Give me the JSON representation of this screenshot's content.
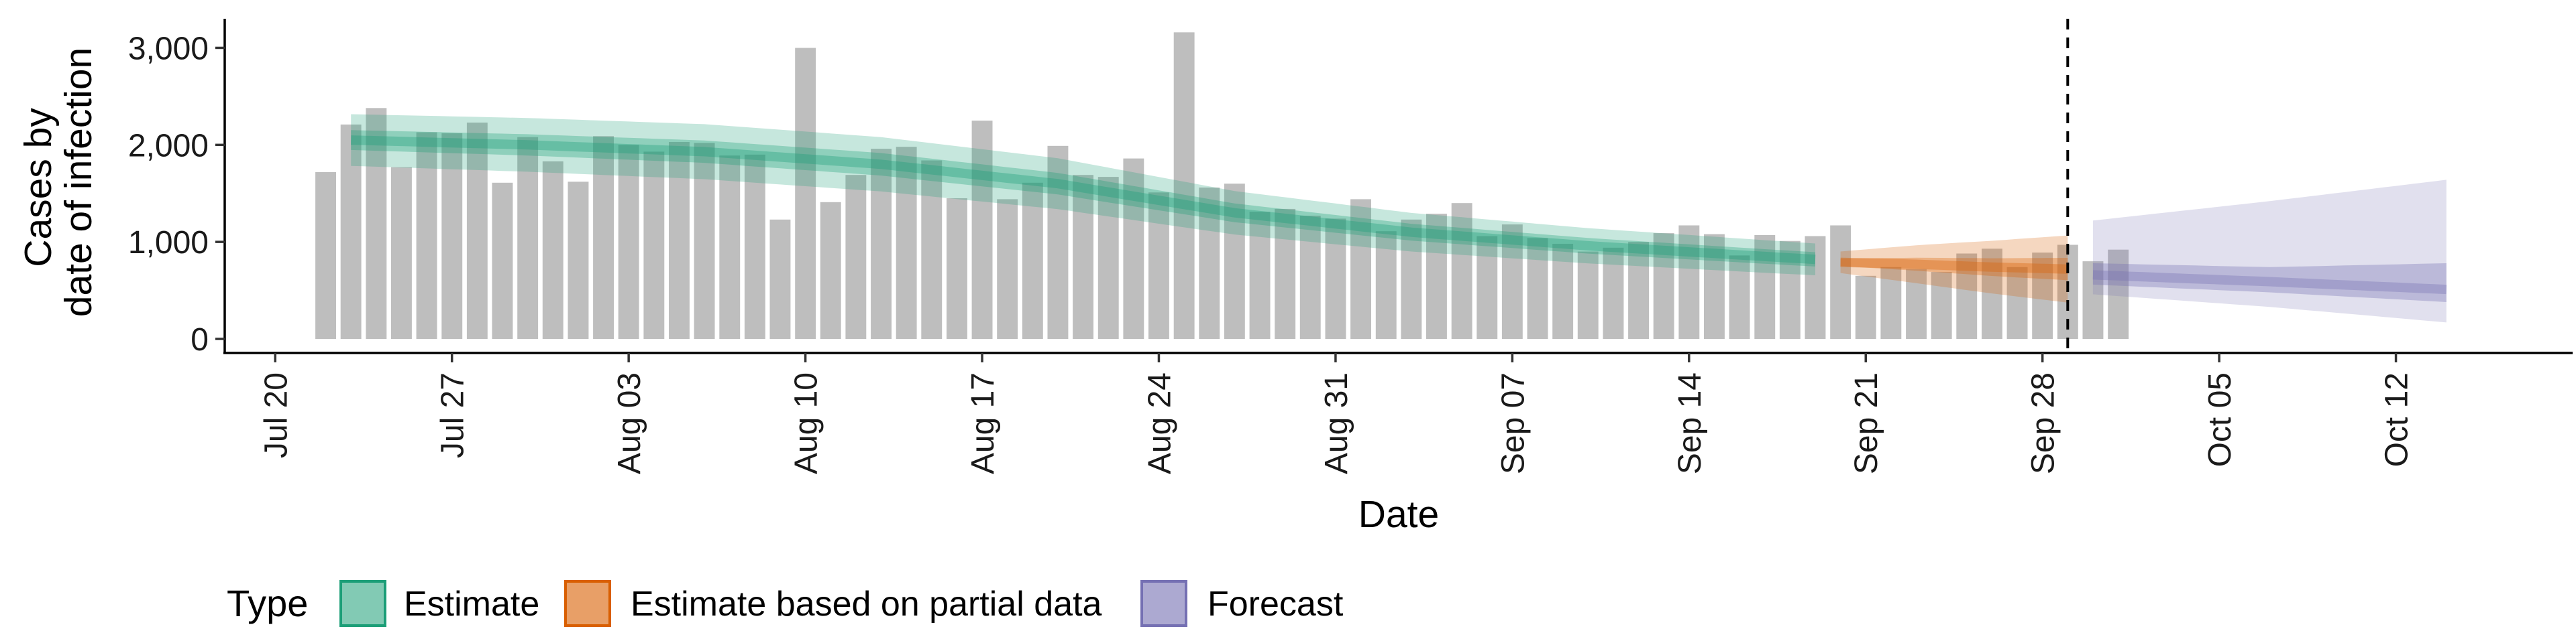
{
  "chart_data": {
    "type": "bar",
    "xlabel": "Date",
    "ylabel_lines": [
      "Cases by",
      "date of infection"
    ],
    "ylim": [
      0,
      3300
    ],
    "y_ticks": [
      0,
      1000,
      2000,
      3000
    ],
    "y_tick_labels": [
      "0",
      "1,000",
      "2,000",
      "3,000"
    ],
    "x_ticks": [
      "2020-07-20",
      "2020-07-27",
      "2020-08-03",
      "2020-08-10",
      "2020-08-17",
      "2020-08-24",
      "2020-08-31",
      "2020-09-07",
      "2020-09-14",
      "2020-09-21",
      "2020-09-28",
      "2020-10-05",
      "2020-10-12"
    ],
    "x_tick_labels": [
      "Jul 20",
      "Jul 27",
      "Aug 03",
      "Aug 10",
      "Aug 17",
      "Aug 24",
      "Aug 31",
      "Sep 07",
      "Sep 14",
      "Sep 21",
      "Sep 28",
      "Oct 05",
      "Oct 12"
    ],
    "xlim": [
      "2020-07-18",
      "2020-10-19"
    ],
    "grid": false,
    "vline_date": "2020-09-29",
    "bar_start": "2020-07-22",
    "bars": [
      1720,
      2210,
      2380,
      1770,
      2130,
      2120,
      2230,
      1610,
      2080,
      1830,
      1620,
      2090,
      2000,
      1930,
      2030,
      2020,
      1890,
      1900,
      1230,
      3000,
      1410,
      1690,
      1960,
      1980,
      1840,
      1450,
      2250,
      1440,
      1610,
      1990,
      1690,
      1670,
      1860,
      1510,
      3160,
      1560,
      1600,
      1310,
      1340,
      1270,
      1240,
      1440,
      1110,
      1230,
      1290,
      1400,
      1060,
      1180,
      1040,
      980,
      900,
      940,
      1000,
      1090,
      1170,
      1080,
      860,
      1070,
      1010,
      1060,
      1170,
      650,
      740,
      720,
      690,
      880,
      930,
      740,
      890,
      970,
      800,
      920
    ],
    "series": [
      {
        "name": "Estimate",
        "color": "#1b9e77",
        "start": "2020-07-23",
        "end": "2020-09-19",
        "knots": [
          [
            0,
            2050
          ],
          [
            7,
            2000
          ],
          [
            14,
            1930
          ],
          [
            21,
            1800
          ],
          [
            28,
            1600
          ],
          [
            35,
            1300
          ],
          [
            42,
            1100
          ],
          [
            49,
            960
          ],
          [
            56,
            850
          ],
          [
            58,
            820
          ]
        ],
        "band_outer": [
          0.13,
          0.2
        ],
        "band_inner": [
          0.05,
          0.09
        ]
      },
      {
        "name": "Estimate based on partial data",
        "color": "#d95f02",
        "start": "2020-09-20",
        "end": "2020-09-29",
        "knots": [
          [
            0,
            790
          ],
          [
            3,
            770
          ],
          [
            6,
            740
          ],
          [
            9,
            720
          ]
        ],
        "band_outer": [
          0.14,
          0.48
        ],
        "band_inner": [
          0.05,
          0.16
        ]
      },
      {
        "name": "Forecast",
        "color": "#7570b3",
        "start": "2020-09-30",
        "end": "2020-10-14",
        "knots": [
          [
            0,
            660
          ],
          [
            7,
            590
          ],
          [
            14,
            510
          ]
        ],
        "band_outer_abs": [
          [
            0,
            460,
            1220
          ],
          [
            7,
            330,
            1420
          ],
          [
            14,
            170,
            1640
          ]
        ],
        "band_inner_abs": [
          [
            0,
            560,
            780
          ],
          [
            7,
            480,
            740
          ],
          [
            14,
            380,
            780
          ]
        ]
      }
    ],
    "legend": {
      "title": "Type",
      "position": "bottom",
      "items": [
        {
          "label": "Estimate",
          "color": "#1b9e77"
        },
        {
          "label": "Estimate based on partial data",
          "color": "#d95f02"
        },
        {
          "label": "Forecast",
          "color": "#7570b3"
        }
      ]
    }
  }
}
